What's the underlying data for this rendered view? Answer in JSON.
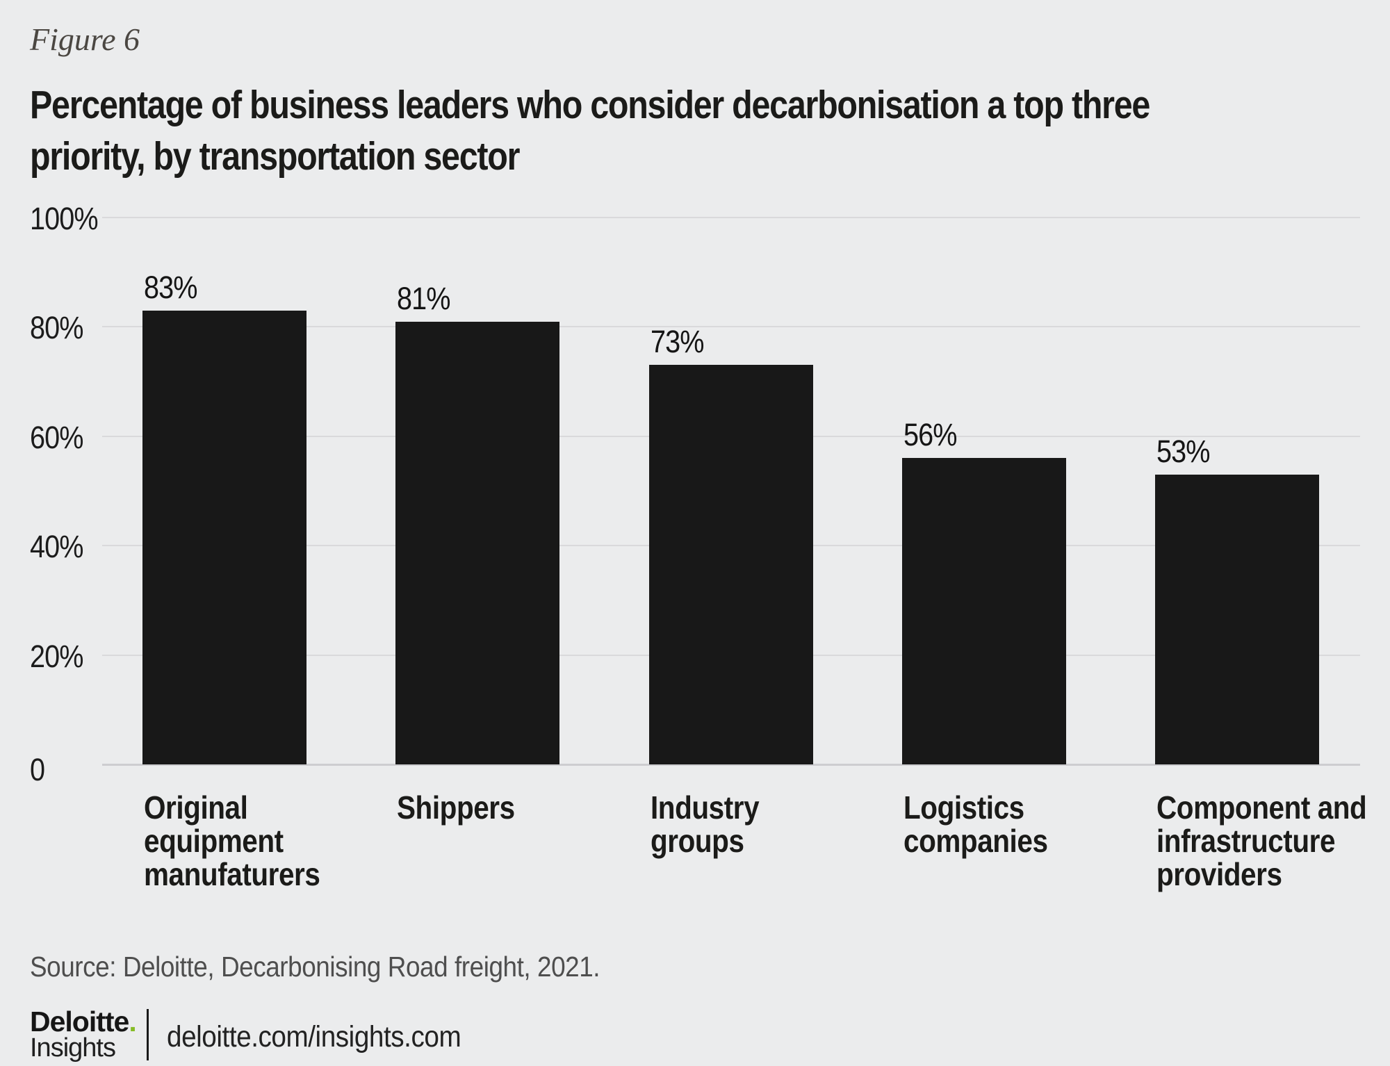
{
  "figure_label": "Figure 6",
  "title_lines": [
    "Percentage of business leaders who consider decarbonisation a top three",
    "priority, by transportation sector"
  ],
  "chart_data": {
    "type": "bar",
    "title": "Percentage of business leaders who consider decarbonisation a top three priority, by transportation sector",
    "categories": [
      "Original equipment manufaturers",
      "Shippers",
      "Industry groups",
      "Logistics companies",
      "Component and infrastructure providers"
    ],
    "category_lines": [
      [
        "Original",
        "equipment",
        "manufaturers"
      ],
      [
        "Shippers"
      ],
      [
        "Industry",
        "groups"
      ],
      [
        "Logistics",
        "companies"
      ],
      [
        "Component and",
        "infrastructure",
        "providers"
      ]
    ],
    "values": [
      83,
      81,
      73,
      56,
      53
    ],
    "value_labels": [
      "83%",
      "81%",
      "73%",
      "56%",
      "53%"
    ],
    "xlabel": "",
    "ylabel": "",
    "ylim": [
      0,
      100
    ],
    "y_ticks": [
      {
        "value": 100,
        "label": "100%"
      },
      {
        "value": 80,
        "label": "80%"
      },
      {
        "value": 60,
        "label": "60%"
      },
      {
        "value": 40,
        "label": "40%"
      },
      {
        "value": 20,
        "label": "20%"
      },
      {
        "value": 0,
        "label": "0"
      }
    ],
    "grid": true,
    "legend": "none",
    "bar_color": "#181818",
    "gridline_color": "#d9d9db",
    "background_color": "#ebeced"
  },
  "source": "Source: Deloitte, Decarbonising Road freight, 2021.",
  "footer": {
    "brand": "Deloitte",
    "brand_dot": ".",
    "brand_sub": "Insights",
    "url": "deloitte.com/insights.com"
  },
  "colors": {
    "accent_green": "#86bc25",
    "text_dark": "#1b1b19",
    "text_gray": "#4e4e4e"
  }
}
